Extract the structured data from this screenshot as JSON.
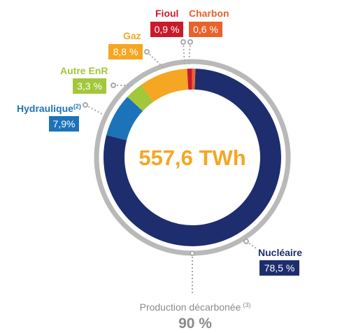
{
  "chart_data": {
    "type": "pie",
    "variant": "donut",
    "total": "557,6 TWh",
    "slices": [
      {
        "label": "Nucléaire",
        "value": 78.5,
        "value_text": "78,5 %",
        "color": "#1e2d6e",
        "label_color": "#1e2d6e"
      },
      {
        "label": "Hydraulique",
        "label_sup": "(2)",
        "value": 7.9,
        "value_text": "7,9%",
        "color": "#1d73b9",
        "label_color": "#1d73b9"
      },
      {
        "label": "Autre EnR",
        "value": 3.3,
        "value_text": "3,3 %",
        "color": "#a2c73a",
        "label_color": "#a2c73a"
      },
      {
        "label": "Gaz",
        "value": 8.8,
        "value_text": "8,8 %",
        "color": "#f5a623",
        "label_color": "#f5a623"
      },
      {
        "label": "Fioul",
        "value": 0.9,
        "value_text": "0,9 %",
        "color": "#c91a2c",
        "label_color": "#c91a2c"
      },
      {
        "label": "Charbon",
        "value": 0.6,
        "value_text": "0,6 %",
        "color": "#e8622c",
        "label_color": "#e8622c"
      }
    ],
    "decarbonated": {
      "label": "Production décarbonée",
      "label_sup": "(3)",
      "value": 90,
      "value_text": "90 %"
    }
  },
  "colors": {
    "outer_ring": "#b9b9b9",
    "connector": "#a9a9a9",
    "decarb_text": "#8a8a8a"
  }
}
